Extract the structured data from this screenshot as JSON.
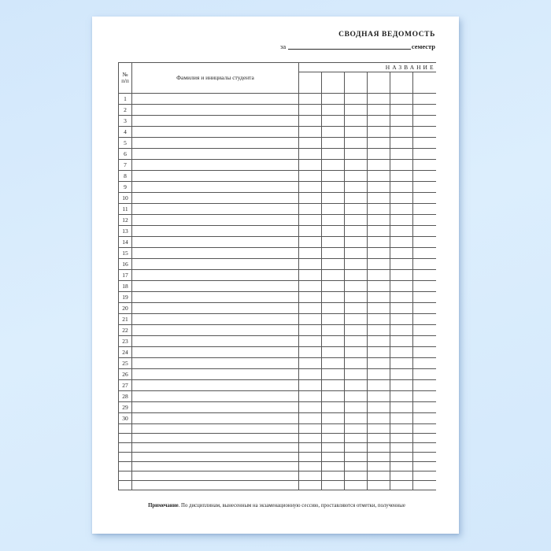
{
  "document": {
    "title": "СВОДНАЯ ВЕДОМОСТЬ",
    "semester_line": {
      "prefix": "за",
      "suffix": "семестр"
    },
    "note": {
      "label": "Примечание",
      "text": ". По дисциплинам, вынесенным на экзаменационную сессию, проставляются отметки, полученные"
    }
  },
  "table": {
    "number_col_header_line1": "№",
    "number_col_header_line2": "п/п",
    "name_col_header": "Фамилия и инициалы студента",
    "subjects_group_header": "НАЗВАНИЕ",
    "subject_column_count": 6,
    "row_numbers": [
      "1",
      "2",
      "3",
      "4",
      "5",
      "6",
      "7",
      "8",
      "9",
      "10",
      "11",
      "12",
      "13",
      "14",
      "15",
      "16",
      "17",
      "18",
      "19",
      "20",
      "21",
      "22",
      "23",
      "24",
      "25",
      "26",
      "27",
      "28",
      "29",
      "30"
    ],
    "extra_blank_row_count": 7
  },
  "colors": {
    "background": "#d6eafc",
    "paper": "#ffffff",
    "grid_line": "#565656",
    "text": "#1f1f1f"
  }
}
